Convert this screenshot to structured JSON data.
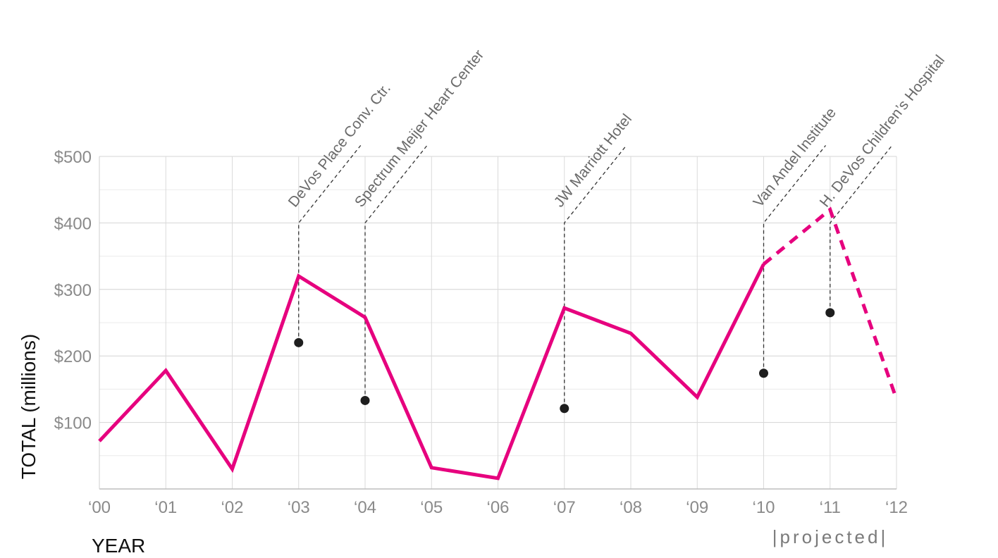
{
  "chart_data": {
    "type": "line",
    "xlabel": "YEAR",
    "ylabel": "TOTAL (millions)",
    "ylim": [
      0,
      500
    ],
    "y_ticks": [
      100,
      200,
      300,
      400,
      500
    ],
    "y_tick_labels": [
      "$100",
      "$200",
      "$300",
      "$400",
      "$500"
    ],
    "categories": [
      "‘00",
      "‘01",
      "‘02",
      "‘03",
      "‘04",
      "‘05",
      "‘06",
      "‘07",
      "‘08",
      "‘09",
      "‘10",
      "‘11",
      "‘12"
    ],
    "grid": true,
    "series": [
      {
        "values": [
          72,
          178,
          30,
          320,
          258,
          32,
          16,
          272,
          234,
          138,
          338,
          null,
          null
        ],
        "color": "#e6007e",
        "style": "solid"
      },
      {
        "values": [
          null,
          null,
          null,
          null,
          null,
          null,
          null,
          null,
          null,
          null,
          338,
          420,
          135
        ],
        "color": "#e6007e",
        "style": "dashed"
      }
    ],
    "projected_label": "|projected|",
    "annotations": [
      {
        "label": "DeVos Place Conv. Ctr.",
        "x_index": 3,
        "value": 220
      },
      {
        "label": "Spectrum Meijer Heart Center",
        "x_index": 4,
        "value": 133
      },
      {
        "label": "JW Marriott Hotel",
        "x_index": 7,
        "value": 121
      },
      {
        "label": "Van Andel Institute",
        "x_index": 10,
        "value": 174
      },
      {
        "label": "H. DeVos Children’s Hospital",
        "x_index": 11,
        "value": 265
      }
    ]
  }
}
